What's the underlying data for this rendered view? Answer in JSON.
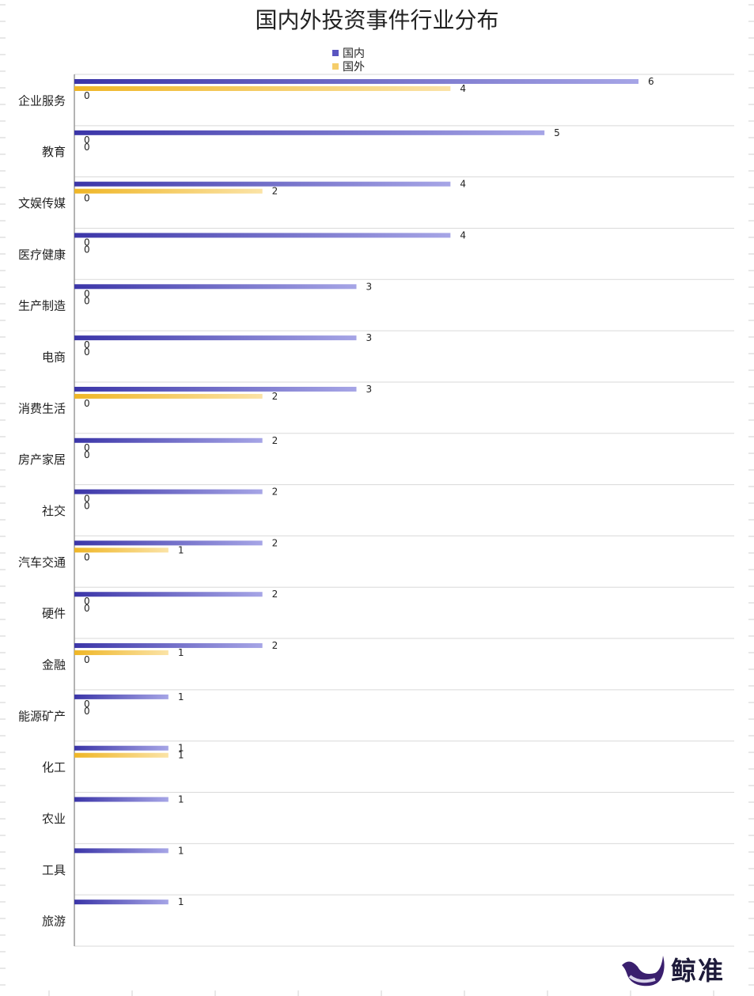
{
  "chart_data": {
    "type": "bar",
    "orientation": "horizontal",
    "title": "国内外投资事件行业分布",
    "categories": [
      "企业服务",
      "教育",
      "文娱传媒",
      "医疗健康",
      "生产制造",
      "电商",
      "消费生活",
      "房产家居",
      "社交",
      "汽车交通",
      "硬件",
      "金融",
      "能源矿产",
      "化工",
      "农业",
      "工具",
      "旅游"
    ],
    "series": [
      {
        "name": "国内",
        "values": [
          6,
          5,
          4,
          4,
          3,
          3,
          3,
          2,
          2,
          2,
          2,
          2,
          1,
          1,
          1,
          1,
          1
        ]
      },
      {
        "name": "国外",
        "values": [
          4,
          0,
          2,
          0,
          0,
          0,
          2,
          0,
          0,
          1,
          0,
          1,
          0,
          1,
          null,
          null,
          null
        ]
      }
    ],
    "extra_labels": [
      0,
      0,
      0,
      0,
      0,
      0,
      0,
      0,
      0,
      0,
      0,
      0,
      0,
      null,
      null,
      null,
      null
    ],
    "xlim": [
      0,
      7
    ],
    "legend_position": "top",
    "grid": "horizontal separators"
  },
  "colors": {
    "domestic_start": "#3b35a8",
    "domestic_end": "#a6a5e6",
    "foreign_start": "#efb626",
    "foreign_end": "#fbe3a6"
  },
  "logo": {
    "text": "鲸准",
    "icon": "whale-icon"
  }
}
